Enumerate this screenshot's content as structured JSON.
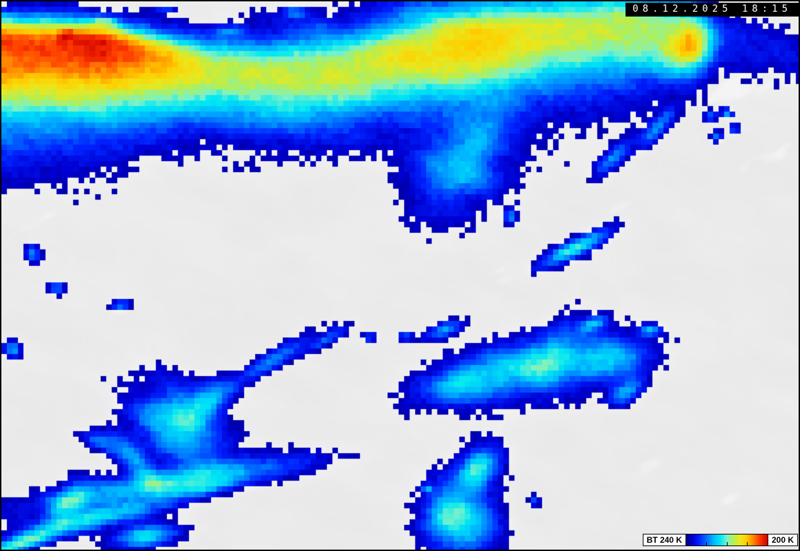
{
  "overlay": {
    "timestamp": "08.12.2025 18:15"
  },
  "colorbar": {
    "label_left": "BT 240 K",
    "label_right": "200 K",
    "unit": "K",
    "range_start": 240,
    "range_end": 200,
    "tick_count": 3,
    "stops": [
      {
        "t": 0.0,
        "c": "#000082"
      },
      {
        "t": 0.08,
        "c": "#0000d2"
      },
      {
        "t": 0.16,
        "c": "#0022ff"
      },
      {
        "t": 0.26,
        "c": "#0077ff"
      },
      {
        "t": 0.34,
        "c": "#00b8ff"
      },
      {
        "t": 0.42,
        "c": "#00e8f4"
      },
      {
        "t": 0.5,
        "c": "#7df2c8"
      },
      {
        "t": 0.58,
        "c": "#b3ef54"
      },
      {
        "t": 0.66,
        "c": "#eae81e"
      },
      {
        "t": 0.74,
        "c": "#ffcf00"
      },
      {
        "t": 0.82,
        "c": "#ff8a00"
      },
      {
        "t": 0.9,
        "c": "#ff3a00"
      },
      {
        "t": 1.0,
        "c": "#d10000"
      }
    ]
  },
  "palette": {
    "border": "#000000",
    "gray_dark": "#a6a6a8",
    "gray_light": "#f4f4f4",
    "halo_white": "#ffffff",
    "timestamp_bg": "#000000",
    "timestamp_text": "#ffffff",
    "label_bg": "#ffffff",
    "label_text": "#000000"
  }
}
